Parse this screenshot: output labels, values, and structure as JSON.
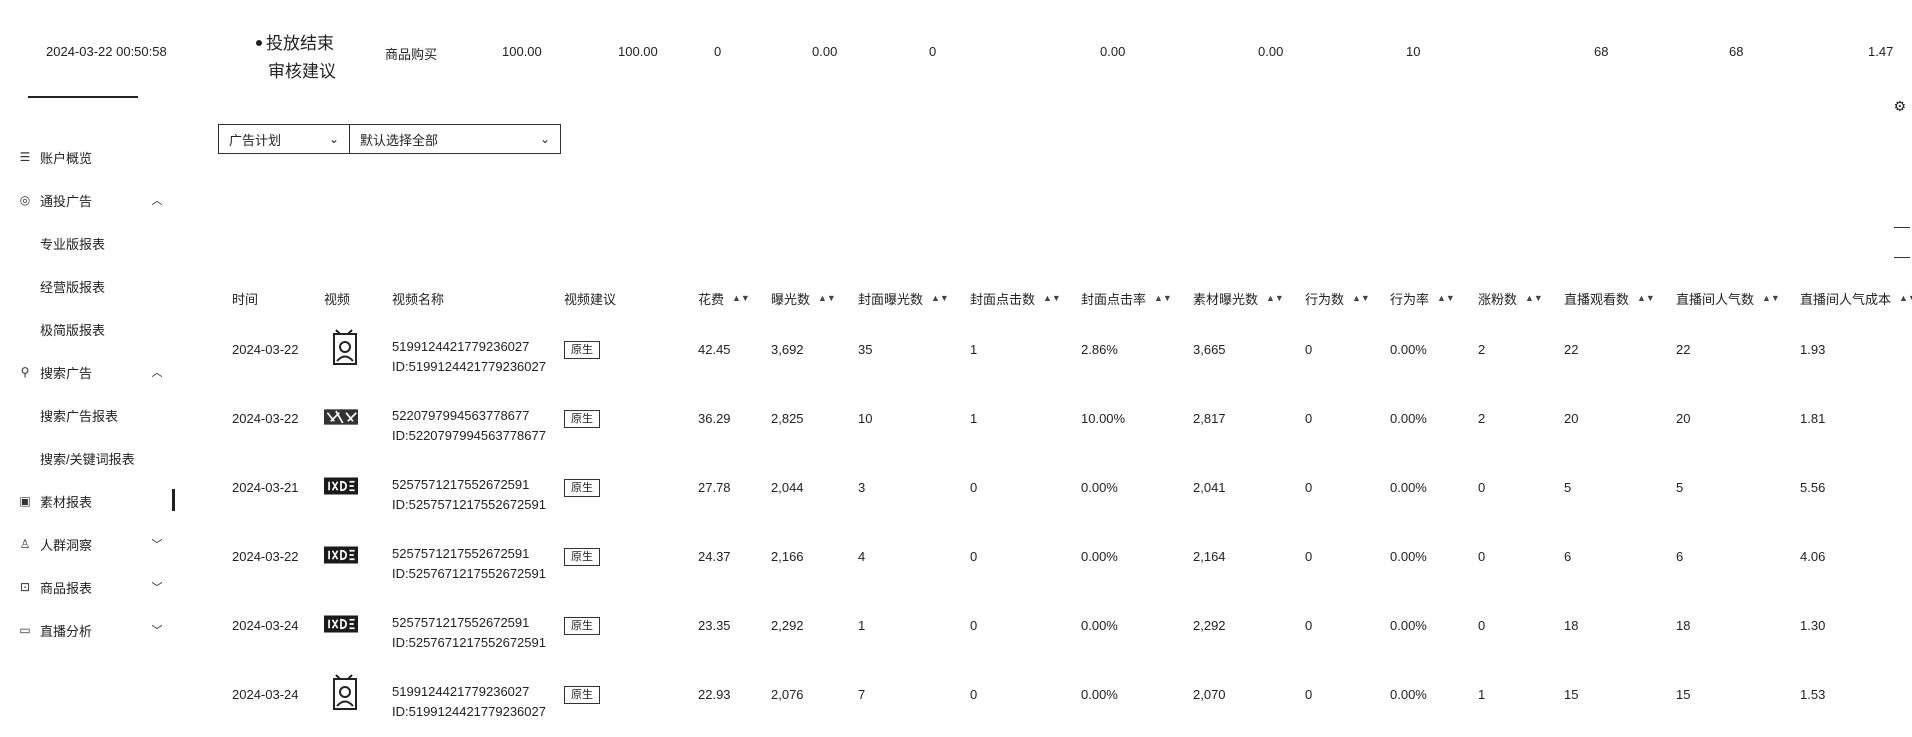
{
  "top_row": {
    "datetime": "2024-03-22 00:50:58",
    "status_line1": "投放结束",
    "status_line2": "审核建议",
    "goal": "商品购买",
    "v1": "100.00",
    "v2": "100.00",
    "v3": "0",
    "v4": "0.00",
    "v5": "0",
    "v6": "0.00",
    "v7": "0.00",
    "v8": "10",
    "v9": "68",
    "v10": "68",
    "v11": "1.47"
  },
  "sidebar": {
    "items": [
      {
        "label": "账户概览",
        "icon": "dashboard-icon"
      },
      {
        "label": "通投广告",
        "icon": "target-icon"
      },
      {
        "label": "专业版报表"
      },
      {
        "label": "经营版报表"
      },
      {
        "label": "极简版报表"
      },
      {
        "label": "搜索广告",
        "icon": "search-icon"
      },
      {
        "label": "搜索广告报表"
      },
      {
        "label": "搜索/关键词报表"
      },
      {
        "label": "素材报表",
        "icon": "material-icon"
      },
      {
        "label": "人群洞察",
        "icon": "crowd-icon"
      },
      {
        "label": "商品报表",
        "icon": "bag-icon"
      },
      {
        "label": "直播分析",
        "icon": "live-icon"
      }
    ]
  },
  "filters": {
    "level": "广告计划",
    "selection": "默认选择全部"
  },
  "table": {
    "columns": [
      "时间",
      "视频",
      "视频名称",
      "视频建议",
      "花费",
      "曝光数",
      "封面曝光数",
      "封面点击数",
      "封面点击率",
      "素材曝光数",
      "行为数",
      "行为率",
      "涨粉数",
      "直播观看数",
      "直播间人气数",
      "直播间人气成本"
    ],
    "rows": [
      {
        "date": "2024-03-22",
        "name": "5199124421779236027",
        "id": "ID:5199124421779236027",
        "tag": "原生",
        "spend": "42.45",
        "impr": "3,692",
        "cover_impr": "35",
        "cover_click": "1",
        "ctr": "2.86%",
        "mat_impr": "3,665",
        "actions": "0",
        "action_rate": "0.00%",
        "fans": "2",
        "live_view": "22",
        "popularity": "22",
        "pop_cost": "1.93",
        "thumb": "person"
      },
      {
        "date": "2024-03-22",
        "name": "5220797994563778677",
        "id": "ID:5220797994563778677",
        "tag": "原生",
        "spend": "36.29",
        "impr": "2,825",
        "cover_impr": "10",
        "cover_click": "1",
        "ctr": "10.00%",
        "mat_impr": "2,817",
        "actions": "0",
        "action_rate": "0.00%",
        "fans": "2",
        "live_view": "20",
        "popularity": "20",
        "pop_cost": "1.81",
        "thumb": "pattern"
      },
      {
        "date": "2024-03-21",
        "name": "5257571217552672591",
        "id": "ID:5257571217552672591",
        "tag": "原生",
        "spend": "27.78",
        "impr": "2,044",
        "cover_impr": "3",
        "cover_click": "0",
        "ctr": "0.00%",
        "mat_impr": "2,041",
        "actions": "0",
        "action_rate": "0.00%",
        "fans": "0",
        "live_view": "5",
        "popularity": "5",
        "pop_cost": "5.56",
        "thumb": "dark"
      },
      {
        "date": "2024-03-22",
        "name": "5257571217552672591",
        "id": "ID:5257671217552672591",
        "tag": "原生",
        "spend": "24.37",
        "impr": "2,166",
        "cover_impr": "4",
        "cover_click": "0",
        "ctr": "0.00%",
        "mat_impr": "2,164",
        "actions": "0",
        "action_rate": "0.00%",
        "fans": "0",
        "live_view": "6",
        "popularity": "6",
        "pop_cost": "4.06",
        "thumb": "dark"
      },
      {
        "date": "2024-03-24",
        "name": "5257571217552672591",
        "id": "ID:5257671217552672591",
        "tag": "原生",
        "spend": "23.35",
        "impr": "2,292",
        "cover_impr": "1",
        "cover_click": "0",
        "ctr": "0.00%",
        "mat_impr": "2,292",
        "actions": "0",
        "action_rate": "0.00%",
        "fans": "0",
        "live_view": "18",
        "popularity": "18",
        "pop_cost": "1.30",
        "thumb": "dark"
      },
      {
        "date": "2024-03-24",
        "name": "5199124421779236027",
        "id": "ID:5199124421779236027",
        "tag": "原生",
        "spend": "22.93",
        "impr": "2,076",
        "cover_impr": "7",
        "cover_click": "0",
        "ctr": "0.00%",
        "mat_impr": "2,070",
        "actions": "0",
        "action_rate": "0.00%",
        "fans": "1",
        "live_view": "15",
        "popularity": "15",
        "pop_cost": "1.53",
        "thumb": "person"
      }
    ]
  }
}
